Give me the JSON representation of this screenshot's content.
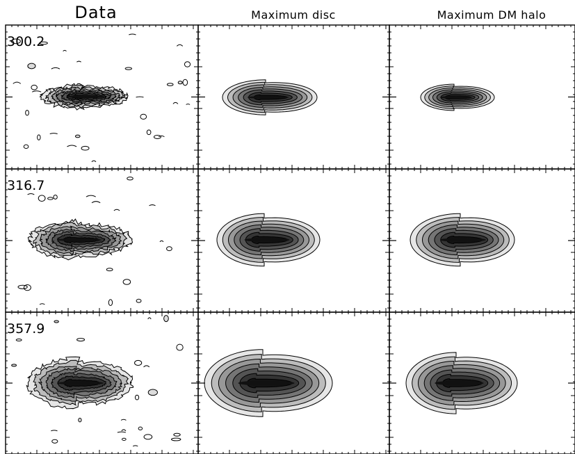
{
  "columns": [
    {
      "title": "Data"
    },
    {
      "title": "Maximum disc"
    },
    {
      "title": "Maximum DM halo"
    }
  ],
  "rows": [
    {
      "velocity": "300.2"
    },
    {
      "velocity": "316.7"
    },
    {
      "velocity": "357.9"
    }
  ],
  "colors": {
    "frame": "#000000",
    "contour": "#000000",
    "fill_light": "#e6e6e6",
    "fill_dark": "#111111"
  }
}
